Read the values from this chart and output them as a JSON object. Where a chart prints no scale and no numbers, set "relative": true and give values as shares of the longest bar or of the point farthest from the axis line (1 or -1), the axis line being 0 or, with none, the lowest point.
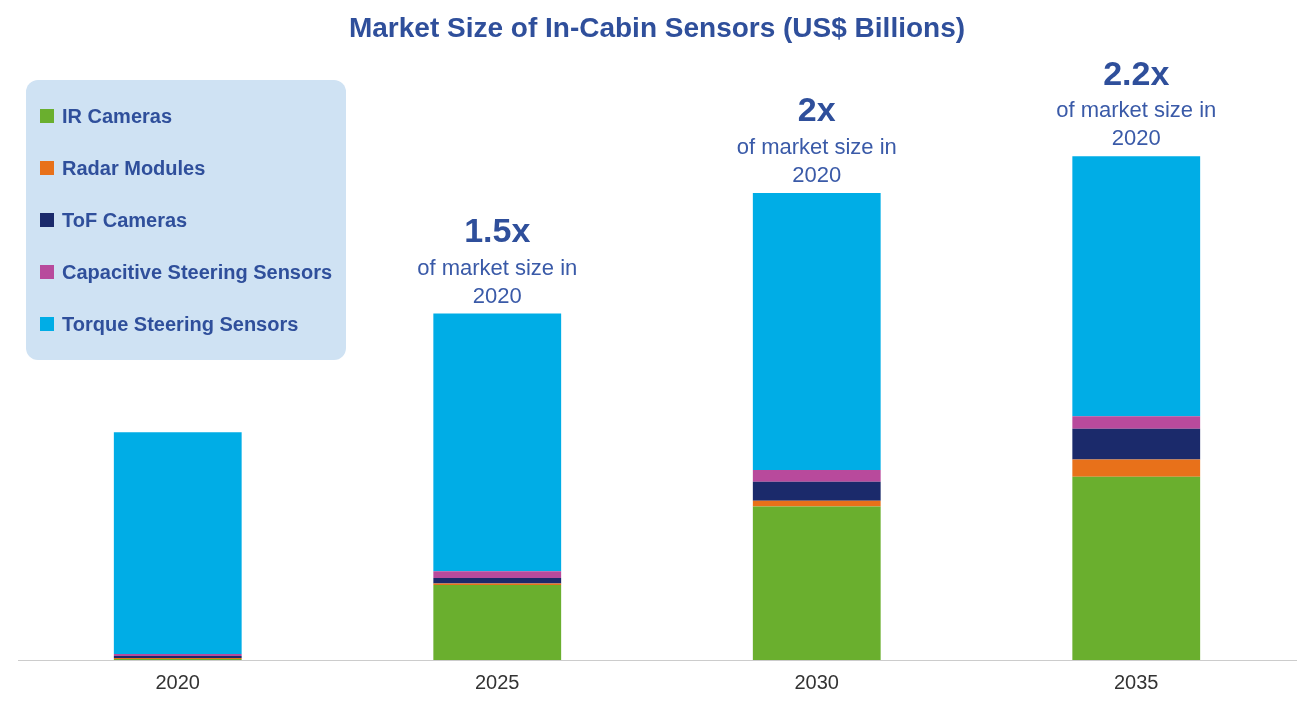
{
  "chart_data": {
    "type": "bar",
    "title": "Market Size of In-Cabin Sensors (US$ Billions)",
    "categories": [
      "2020",
      "2025",
      "2030",
      "2035"
    ],
    "stacked": true,
    "relative": true,
    "legend": "top left",
    "series": [
      {
        "name": "IR Cameras",
        "color": "#6aaf2e",
        "values": [
          0.002,
          0.149,
          0.305,
          0.364
        ]
      },
      {
        "name": "Radar Modules",
        "color": "#e8711a",
        "values": [
          0.002,
          0.003,
          0.011,
          0.034
        ]
      },
      {
        "name": "ToF Cameras",
        "color": "#1b2a6b",
        "values": [
          0.004,
          0.011,
          0.038,
          0.061
        ]
      },
      {
        "name": "Capacitive Steering Sensors",
        "color": "#b84a9c",
        "values": [
          0.004,
          0.013,
          0.023,
          0.025
        ]
      },
      {
        "name": "Torque Steering Sensors",
        "color": "#00ade6",
        "values": [
          0.44,
          0.512,
          0.55,
          0.516
        ]
      }
    ],
    "annotations": [
      {
        "text": "1.5x\nof market size in\n2020",
        "x": "2025",
        "y": 0.688
      },
      {
        "text": "2x\nof market size in\n2020",
        "x": "2030",
        "y": 0.927
      },
      {
        "text": "2.2x\nof market size in\n2020",
        "x": "2035",
        "y": 1.0
      }
    ]
  }
}
